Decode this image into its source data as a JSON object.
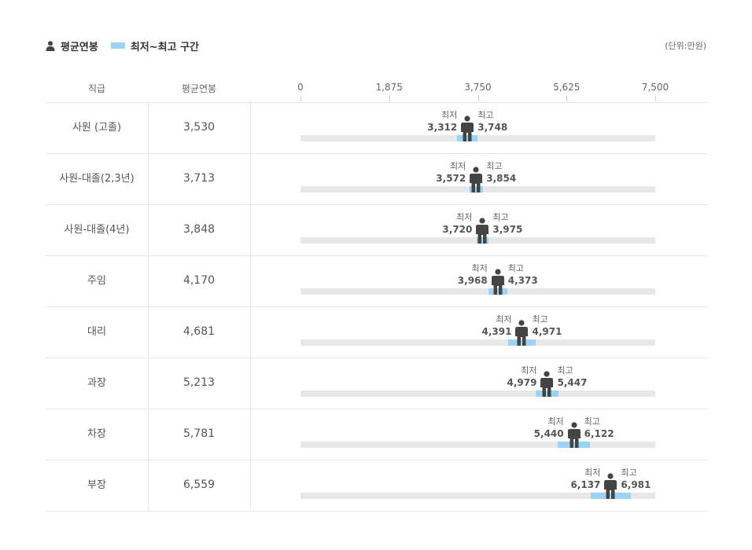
{
  "legend": {
    "average_label": "평균연봉",
    "range_label": "최저~최고 구간",
    "average_icon": "person-icon",
    "range_color": "#9bd3f5"
  },
  "unit_label": "(단위:만원)",
  "table": {
    "header_rank": "직급",
    "header_avg": "평균연봉"
  },
  "labels": {
    "min": "최저",
    "max": "최고"
  },
  "chart_data": {
    "type": "range-bar",
    "x_ticks": [
      "0",
      "1,875",
      "3,750",
      "5,625",
      "7,500"
    ],
    "xlim": [
      0,
      7500
    ],
    "categories": [
      "사원 (고졸)",
      "사원-대졸(2,3년)",
      "사원-대졸(4년)",
      "주임",
      "대리",
      "과장",
      "차장",
      "부장"
    ],
    "avg_labels": [
      "3,530",
      "3,713",
      "3,848",
      "4,170",
      "4,681",
      "5,213",
      "5,781",
      "6,559"
    ],
    "avg": [
      3530,
      3713,
      3848,
      4170,
      4681,
      5213,
      5781,
      6559
    ],
    "min_labels": [
      "3,312",
      "3,572",
      "3,720",
      "3,968",
      "4,391",
      "4,979",
      "5,440",
      "6,137"
    ],
    "min": [
      3312,
      3572,
      3720,
      3968,
      4391,
      4979,
      5440,
      6137
    ],
    "max_labels": [
      "3,748",
      "3,854",
      "3,975",
      "4,373",
      "4,971",
      "5,447",
      "6,122",
      "6,981"
    ],
    "max": [
      3748,
      3854,
      3975,
      4373,
      4971,
      5447,
      6122,
      6981
    ]
  }
}
